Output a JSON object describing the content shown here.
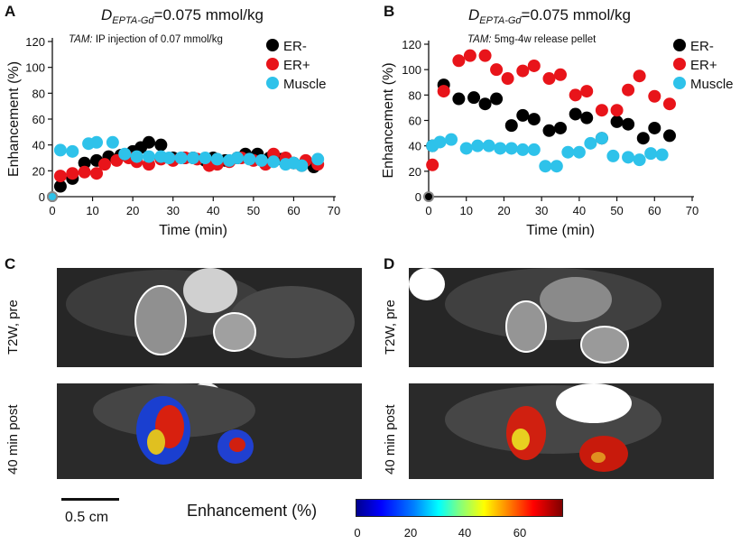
{
  "panels": {
    "A": "A",
    "B": "B",
    "C": "C",
    "D": "D"
  },
  "chart_data": [
    {
      "type": "scatter",
      "panel": "A",
      "title_main": "D",
      "title_subscript": "EPTA-Gd",
      "title_rest": "=0.075 mmol/kg",
      "annotation_label": "TAM:",
      "annotation_text": " IP injection of 0.07 mmol/kg",
      "xlabel": "Time (min)",
      "ylabel": "Enhancement (%)",
      "xlim": [
        0,
        70
      ],
      "ylim": [
        0,
        120
      ],
      "xticks": [
        "0",
        "10",
        "20",
        "30",
        "40",
        "50",
        "60",
        "70"
      ],
      "yticks": [
        "0",
        "20",
        "40",
        "60",
        "80",
        "100",
        "120"
      ],
      "legend": [
        "ER-",
        "ER+",
        "Muscle"
      ],
      "series": [
        {
          "name": "ER-",
          "color": "#000000",
          "x": [
            0,
            2,
            5,
            8,
            11,
            14,
            17,
            20,
            22,
            24,
            27,
            30,
            33,
            35,
            38,
            40,
            43,
            46,
            48,
            51,
            54,
            57,
            60,
            62,
            65
          ],
          "y": [
            0,
            8,
            14,
            26,
            28,
            31,
            32,
            35,
            38,
            42,
            40,
            30,
            30,
            30,
            28,
            30,
            28,
            30,
            33,
            33,
            30,
            29,
            26,
            24,
            23
          ]
        },
        {
          "name": "ER+",
          "color": "#e8141a",
          "x": [
            0,
            2,
            5,
            8,
            11,
            13,
            16,
            19,
            21,
            24,
            27,
            30,
            33,
            36,
            39,
            41,
            44,
            47,
            50,
            53,
            55,
            58,
            63,
            66
          ],
          "y": [
            0,
            16,
            18,
            19,
            18,
            25,
            28,
            30,
            27,
            25,
            29,
            28,
            30,
            29,
            24,
            25,
            27,
            30,
            28,
            25,
            33,
            30,
            28,
            25
          ]
        },
        {
          "name": "Muscle",
          "color": "#2ec2ea",
          "x": [
            0,
            2,
            5,
            9,
            11,
            15,
            18,
            21,
            24,
            27,
            29,
            32,
            35,
            38,
            41,
            44,
            46,
            49,
            52,
            55,
            58,
            60,
            62,
            66
          ],
          "y": [
            0,
            36,
            35,
            41,
            42,
            42,
            33,
            31,
            31,
            31,
            30,
            30,
            30,
            30,
            29,
            28,
            30,
            29,
            28,
            27,
            25,
            26,
            24,
            29
          ]
        }
      ]
    },
    {
      "type": "scatter",
      "panel": "B",
      "title_main": "D",
      "title_subscript": "EPTA-Gd",
      "title_rest": "=0.075 mmol/kg",
      "annotation_label": "TAM:",
      "annotation_text": " 5mg-4w release pellet",
      "xlabel": "Time (min)",
      "ylabel": "Enhancement (%)",
      "xlim": [
        0,
        70
      ],
      "ylim": [
        0,
        120
      ],
      "xticks": [
        "0",
        "10",
        "20",
        "30",
        "40",
        "50",
        "60",
        "70"
      ],
      "yticks": [
        "0",
        "20",
        "40",
        "60",
        "80",
        "100",
        "120"
      ],
      "legend": [
        "ER-",
        "ER+",
        "Muscle"
      ],
      "series": [
        {
          "name": "ER-",
          "color": "#000000",
          "x": [
            0,
            1,
            4,
            8,
            12,
            15,
            18,
            22,
            25,
            28,
            32,
            35,
            39,
            42,
            46,
            50,
            53,
            57,
            60,
            64
          ],
          "y": [
            0,
            40,
            88,
            77,
            78,
            73,
            77,
            56,
            64,
            61,
            52,
            54,
            65,
            62,
            46,
            59,
            57,
            46,
            54,
            48
          ]
        },
        {
          "name": "ER+",
          "color": "#e8141a",
          "x": [
            1,
            4,
            8,
            11,
            15,
            18,
            21,
            25,
            28,
            32,
            35,
            39,
            42,
            46,
            50,
            53,
            56,
            60,
            64
          ],
          "y": [
            25,
            83,
            107,
            111,
            111,
            100,
            93,
            99,
            103,
            93,
            96,
            80,
            83,
            68,
            68,
            84,
            95,
            79,
            73
          ]
        },
        {
          "name": "Muscle",
          "color": "#2ec2ea",
          "x": [
            1,
            3,
            6,
            10,
            13,
            16,
            19,
            22,
            25,
            28,
            31,
            34,
            37,
            40,
            43,
            46,
            49,
            53,
            56,
            59,
            62
          ],
          "y": [
            40,
            43,
            45,
            38,
            40,
            40,
            38,
            38,
            37,
            37,
            24,
            24,
            35,
            35,
            42,
            46,
            32,
            31,
            29,
            34,
            33
          ]
        }
      ]
    }
  ],
  "images": {
    "row_top": "T2W, pre",
    "row_bottom": "40 min post"
  },
  "scale_bar": "0.5 cm",
  "colorbar": {
    "title": "Enhancement (%)",
    "ticks": [
      "0",
      "20",
      "40",
      "60"
    ]
  }
}
